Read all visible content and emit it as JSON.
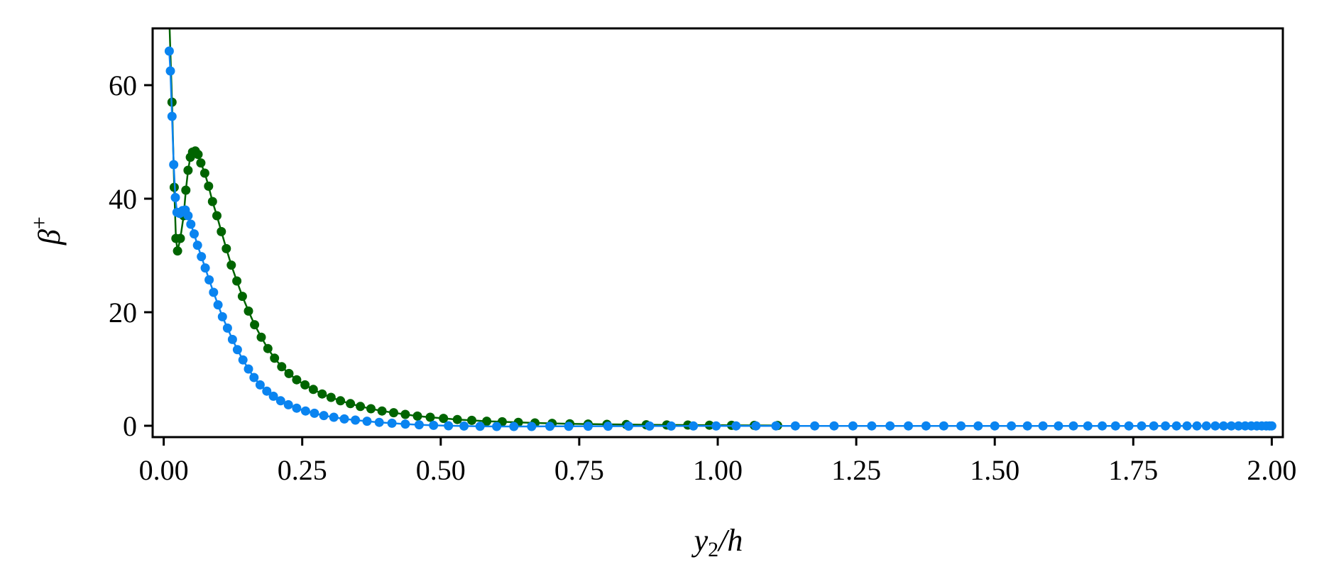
{
  "chart_data": {
    "type": "line",
    "xlabel": "y₂/h",
    "ylabel": "β⁺",
    "xlim": [
      -0.02,
      2.02
    ],
    "ylim": [
      -2,
      70
    ],
    "xticks": [
      "0.00",
      "0.25",
      "0.50",
      "0.75",
      "1.00",
      "1.25",
      "1.50",
      "1.75",
      "2.00"
    ],
    "yticks": [
      "0",
      "20",
      "40",
      "60"
    ],
    "grid": false,
    "legend": "none",
    "series": [
      {
        "color": "#006400",
        "marker": "circle",
        "points": [
          [
            0.01,
            72.0
          ],
          [
            0.015,
            57.0
          ],
          [
            0.019,
            42.0
          ],
          [
            0.022,
            33.0
          ],
          [
            0.025,
            30.8
          ],
          [
            0.03,
            33.0
          ],
          [
            0.036,
            37.0
          ],
          [
            0.04,
            41.5
          ],
          [
            0.044,
            45.0
          ],
          [
            0.048,
            47.3
          ],
          [
            0.052,
            48.2
          ],
          [
            0.057,
            48.4
          ],
          [
            0.062,
            47.8
          ],
          [
            0.067,
            46.3
          ],
          [
            0.074,
            44.5
          ],
          [
            0.081,
            42.2
          ],
          [
            0.088,
            39.5
          ],
          [
            0.096,
            37.0
          ],
          [
            0.104,
            34.2
          ],
          [
            0.113,
            31.2
          ],
          [
            0.122,
            28.3
          ],
          [
            0.132,
            25.5
          ],
          [
            0.142,
            22.8
          ],
          [
            0.153,
            20.2
          ],
          [
            0.164,
            17.8
          ],
          [
            0.176,
            15.6
          ],
          [
            0.188,
            13.6
          ],
          [
            0.2,
            11.9
          ],
          [
            0.213,
            10.4
          ],
          [
            0.226,
            9.2
          ],
          [
            0.24,
            8.1
          ],
          [
            0.255,
            7.2
          ],
          [
            0.27,
            6.4
          ],
          [
            0.286,
            5.6
          ],
          [
            0.302,
            5.0
          ],
          [
            0.319,
            4.4
          ],
          [
            0.337,
            3.9
          ],
          [
            0.355,
            3.4
          ],
          [
            0.374,
            3.0
          ],
          [
            0.394,
            2.6
          ],
          [
            0.415,
            2.3
          ],
          [
            0.436,
            2.0
          ],
          [
            0.458,
            1.7
          ],
          [
            0.481,
            1.5
          ],
          [
            0.505,
            1.3
          ],
          [
            0.53,
            1.1
          ],
          [
            0.556,
            0.95
          ],
          [
            0.583,
            0.8
          ],
          [
            0.611,
            0.7
          ],
          [
            0.64,
            0.6
          ],
          [
            0.67,
            0.5
          ],
          [
            0.701,
            0.42
          ],
          [
            0.733,
            0.35
          ],
          [
            0.766,
            0.3
          ],
          [
            0.8,
            0.25
          ],
          [
            0.835,
            0.21
          ],
          [
            0.871,
            0.17
          ],
          [
            0.908,
            0.14
          ],
          [
            0.946,
            0.12
          ],
          [
            0.985,
            0.1
          ],
          [
            1.025,
            0.08
          ],
          [
            1.066,
            0.06
          ],
          [
            1.108,
            0.05
          ]
        ]
      },
      {
        "color": "#0a84f0",
        "marker": "circle",
        "points": [
          [
            0.01,
            66.0
          ],
          [
            0.012,
            62.5
          ],
          [
            0.015,
            54.5
          ],
          [
            0.018,
            46.0
          ],
          [
            0.021,
            40.2
          ],
          [
            0.024,
            37.6
          ],
          [
            0.029,
            37.4
          ],
          [
            0.034,
            37.9
          ],
          [
            0.039,
            38.0
          ],
          [
            0.044,
            37.0
          ],
          [
            0.049,
            35.5
          ],
          [
            0.055,
            33.8
          ],
          [
            0.061,
            31.8
          ],
          [
            0.068,
            29.8
          ],
          [
            0.075,
            27.8
          ],
          [
            0.082,
            25.7
          ],
          [
            0.09,
            23.5
          ],
          [
            0.098,
            21.3
          ],
          [
            0.106,
            19.2
          ],
          [
            0.115,
            17.2
          ],
          [
            0.124,
            15.2
          ],
          [
            0.133,
            13.4
          ],
          [
            0.143,
            11.6
          ],
          [
            0.153,
            10.0
          ],
          [
            0.163,
            8.5
          ],
          [
            0.174,
            7.2
          ],
          [
            0.186,
            6.1
          ],
          [
            0.198,
            5.2
          ],
          [
            0.211,
            4.4
          ],
          [
            0.225,
            3.7
          ],
          [
            0.24,
            3.1
          ],
          [
            0.256,
            2.6
          ],
          [
            0.272,
            2.2
          ],
          [
            0.289,
            1.8
          ],
          [
            0.307,
            1.5
          ],
          [
            0.326,
            1.2
          ],
          [
            0.346,
            1.0
          ],
          [
            0.367,
            0.8
          ],
          [
            0.389,
            0.6
          ],
          [
            0.412,
            0.45
          ],
          [
            0.436,
            0.3
          ],
          [
            0.461,
            0.18
          ],
          [
            0.487,
            0.08
          ],
          [
            0.514,
            0.0
          ],
          [
            0.542,
            -0.05
          ],
          [
            0.571,
            -0.1
          ],
          [
            0.601,
            -0.12
          ],
          [
            0.632,
            -0.12
          ],
          [
            0.664,
            -0.12
          ],
          [
            0.697,
            -0.1
          ],
          [
            0.731,
            -0.1
          ],
          [
            0.766,
            -0.08
          ],
          [
            0.802,
            -0.08
          ],
          [
            0.839,
            -0.06
          ],
          [
            0.877,
            -0.05
          ],
          [
            0.916,
            -0.05
          ],
          [
            0.956,
            -0.04
          ],
          [
            0.997,
            -0.04
          ],
          [
            1.033,
            -0.03
          ],
          [
            1.069,
            -0.03
          ],
          [
            1.105,
            -0.03
          ],
          [
            1.14,
            -0.02
          ],
          [
            1.175,
            -0.02
          ],
          [
            1.21,
            -0.02
          ],
          [
            1.244,
            -0.02
          ],
          [
            1.278,
            -0.02
          ],
          [
            1.311,
            -0.02
          ],
          [
            1.344,
            -0.02
          ],
          [
            1.376,
            -0.02
          ],
          [
            1.408,
            -0.02
          ],
          [
            1.439,
            -0.02
          ],
          [
            1.47,
            -0.02
          ],
          [
            1.5,
            -0.02
          ],
          [
            1.53,
            -0.02
          ],
          [
            1.559,
            -0.02
          ],
          [
            1.587,
            -0.02
          ],
          [
            1.615,
            -0.02
          ],
          [
            1.642,
            -0.02
          ],
          [
            1.668,
            -0.02
          ],
          [
            1.694,
            -0.02
          ],
          [
            1.718,
            -0.02
          ],
          [
            1.742,
            -0.02
          ],
          [
            1.765,
            -0.02
          ],
          [
            1.787,
            -0.02
          ],
          [
            1.808,
            -0.02
          ],
          [
            1.828,
            -0.02
          ],
          [
            1.847,
            -0.02
          ],
          [
            1.865,
            -0.02
          ],
          [
            1.882,
            -0.02
          ],
          [
            1.898,
            -0.02
          ],
          [
            1.913,
            -0.02
          ],
          [
            1.927,
            -0.02
          ],
          [
            1.94,
            -0.02
          ],
          [
            1.952,
            -0.02
          ],
          [
            1.963,
            -0.02
          ],
          [
            1.973,
            -0.02
          ],
          [
            1.982,
            -0.02
          ],
          [
            1.99,
            -0.02
          ],
          [
            1.996,
            -0.02
          ],
          [
            2.0,
            -0.02
          ]
        ]
      }
    ]
  }
}
